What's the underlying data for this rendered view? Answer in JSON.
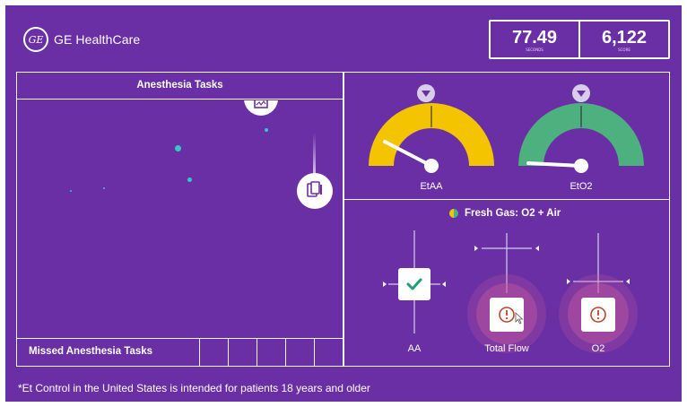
{
  "brand": {
    "name": "GE HealthCare",
    "logo_monogram": "GE"
  },
  "scoreboard": {
    "seconds_value": "77.49",
    "seconds_caption": "SECONDS",
    "score_value": "6,122",
    "score_caption": "SCORE"
  },
  "tasks_panel": {
    "title": "Anesthesia Tasks",
    "missed_label": "Missed Anesthesia Tasks",
    "missed_slots": 5
  },
  "gauges": [
    {
      "label": "EtAA",
      "color": "#f5c400",
      "needle_value": 0.08
    },
    {
      "label": "EtO2",
      "color": "#4cb17f",
      "needle_value": 0.02
    }
  ],
  "fresh_gas": {
    "title": "Fresh Gas: O2 + Air",
    "indicator_colors": [
      "#f5c400",
      "#4cb17f"
    ],
    "controls": [
      {
        "label": "AA",
        "status": "ok",
        "status_icon": "check-icon"
      },
      {
        "label": "Total Flow",
        "status": "warning",
        "status_icon": "alert-icon"
      },
      {
        "label": "O2",
        "status": "warning",
        "status_icon": "alert-icon"
      }
    ]
  },
  "footnote": "*Et Control in the United States is intended for patients 18 years and older",
  "colors": {
    "background": "#6a2fa5",
    "accent_teal": "#35c6c9",
    "warning_glow": "#c4599e"
  }
}
